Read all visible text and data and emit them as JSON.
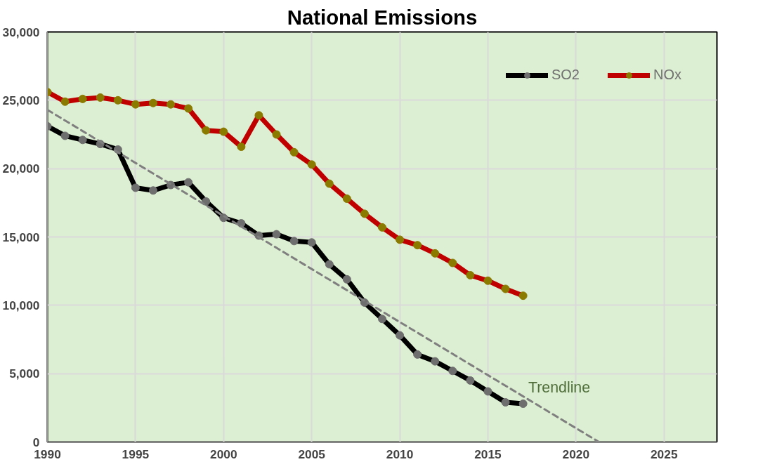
{
  "chart_data": {
    "type": "line",
    "title": "National Emissions",
    "x": [
      1990,
      1991,
      1992,
      1993,
      1994,
      1995,
      1996,
      1997,
      1998,
      1999,
      2000,
      2001,
      2002,
      2003,
      2004,
      2005,
      2006,
      2007,
      2008,
      2009,
      2010,
      2011,
      2012,
      2013,
      2014,
      2015,
      2016,
      2017
    ],
    "series": [
      {
        "name": "SO2",
        "color": "#000000",
        "values": [
          23100,
          22400,
          22100,
          21800,
          21400,
          18600,
          18400,
          18800,
          19000,
          17600,
          16400,
          16000,
          15100,
          15200,
          14700,
          14600,
          13000,
          11900,
          10200,
          9000,
          7800,
          6400,
          5900,
          5200,
          4500,
          3700,
          2900,
          2800
        ]
      },
      {
        "name": "NOx",
        "color": "#c00000",
        "values": [
          25600,
          24900,
          25100,
          25200,
          25000,
          24700,
          24800,
          24700,
          24400,
          22800,
          22700,
          21600,
          23900,
          22500,
          21200,
          20300,
          18900,
          17800,
          16700,
          15700,
          14800,
          14400,
          13800,
          13100,
          12200,
          11800,
          11200,
          10700
        ]
      },
      {
        "name": "Trendline",
        "color": "#7f7f7f",
        "x": [
          1990,
          2021.3
        ],
        "values": [
          24300,
          0
        ],
        "line_style": "dashed",
        "marker": "none"
      }
    ],
    "xlim": [
      1990,
      2028
    ],
    "ylim": [
      0,
      30000
    ],
    "xticks": [
      1990,
      1995,
      2000,
      2005,
      2010,
      2015,
      2020,
      2025
    ],
    "yticks": [
      {
        "value": 0,
        "label": "0"
      },
      {
        "value": 5000,
        "label": "5,000"
      },
      {
        "value": 10000,
        "label": "10,000"
      },
      {
        "value": 15000,
        "label": "15,000"
      },
      {
        "value": 20000,
        "label": "20,000"
      },
      {
        "value": 25000,
        "label": "25,000"
      },
      {
        "value": 30000,
        "label": "30,000"
      }
    ],
    "grid": true,
    "legend": "top right",
    "marker": "circle",
    "line_style": "solid"
  }
}
